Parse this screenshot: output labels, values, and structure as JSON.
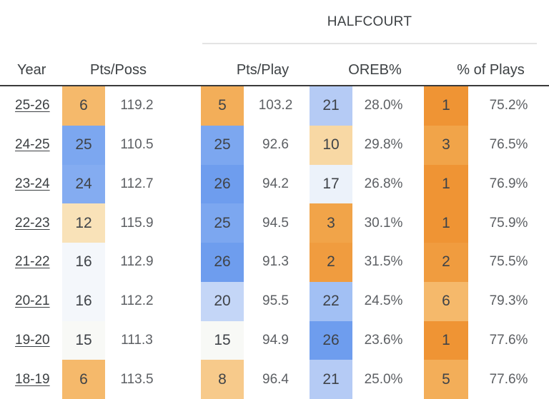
{
  "header": {
    "group_label": "HALFCOURT",
    "columns": [
      "Year",
      "Pts/Poss",
      "Pts/Play",
      "OREB%",
      "% of Plays"
    ]
  },
  "colors": {
    "header_rule_dark": "#3a3a3a",
    "group_rule_light": "#e4e4e4",
    "rank_text": "#3f4348",
    "value_text": "#5c5f63",
    "rank_palette": {
      "1": "#EF9434",
      "2": "#F09C3F",
      "3": "#F1A449",
      "5": "#F3AE59",
      "6": "#F5B96B",
      "8": "#F7CA8B",
      "10": "#F8D8A4",
      "12": "#F9E2B8",
      "15": "#F8F9F6",
      "16": "#F4F7FB",
      "17": "#ECF2FA",
      "20": "#C4D6F7",
      "21": "#B5CBF5",
      "22": "#A2C0F4",
      "24": "#84ACF1",
      "25": "#7CA7F0",
      "26": "#6E9DEE"
    }
  },
  "rows": [
    {
      "year": "25-26",
      "pts_poss": {
        "rank": 6,
        "value": "119.2"
      },
      "pts_play": {
        "rank": 5,
        "value": "103.2"
      },
      "oreb_pct": {
        "rank": 21,
        "value": "28.0%"
      },
      "pct_of_plays": {
        "rank": 1,
        "value": "75.2%"
      }
    },
    {
      "year": "24-25",
      "pts_poss": {
        "rank": 25,
        "value": "110.5"
      },
      "pts_play": {
        "rank": 25,
        "value": "92.6"
      },
      "oreb_pct": {
        "rank": 10,
        "value": "29.8%"
      },
      "pct_of_plays": {
        "rank": 3,
        "value": "76.5%"
      }
    },
    {
      "year": "23-24",
      "pts_poss": {
        "rank": 24,
        "value": "112.7"
      },
      "pts_play": {
        "rank": 26,
        "value": "94.2"
      },
      "oreb_pct": {
        "rank": 17,
        "value": "26.8%"
      },
      "pct_of_plays": {
        "rank": 1,
        "value": "76.9%"
      }
    },
    {
      "year": "22-23",
      "pts_poss": {
        "rank": 12,
        "value": "115.9"
      },
      "pts_play": {
        "rank": 25,
        "value": "94.5"
      },
      "oreb_pct": {
        "rank": 3,
        "value": "30.1%"
      },
      "pct_of_plays": {
        "rank": 1,
        "value": "75.9%"
      }
    },
    {
      "year": "21-22",
      "pts_poss": {
        "rank": 16,
        "value": "112.9"
      },
      "pts_play": {
        "rank": 26,
        "value": "91.3"
      },
      "oreb_pct": {
        "rank": 2,
        "value": "31.5%"
      },
      "pct_of_plays": {
        "rank": 2,
        "value": "75.5%"
      }
    },
    {
      "year": "20-21",
      "pts_poss": {
        "rank": 16,
        "value": "112.2"
      },
      "pts_play": {
        "rank": 20,
        "value": "95.5"
      },
      "oreb_pct": {
        "rank": 22,
        "value": "24.5%"
      },
      "pct_of_plays": {
        "rank": 6,
        "value": "79.3%"
      }
    },
    {
      "year": "19-20",
      "pts_poss": {
        "rank": 15,
        "value": "111.3"
      },
      "pts_play": {
        "rank": 15,
        "value": "94.9"
      },
      "oreb_pct": {
        "rank": 26,
        "value": "23.6%"
      },
      "pct_of_plays": {
        "rank": 1,
        "value": "77.6%"
      }
    },
    {
      "year": "18-19",
      "pts_poss": {
        "rank": 6,
        "value": "113.5"
      },
      "pts_play": {
        "rank": 8,
        "value": "96.4"
      },
      "oreb_pct": {
        "rank": 21,
        "value": "25.0%"
      },
      "pct_of_plays": {
        "rank": 5,
        "value": "77.6%"
      }
    }
  ]
}
